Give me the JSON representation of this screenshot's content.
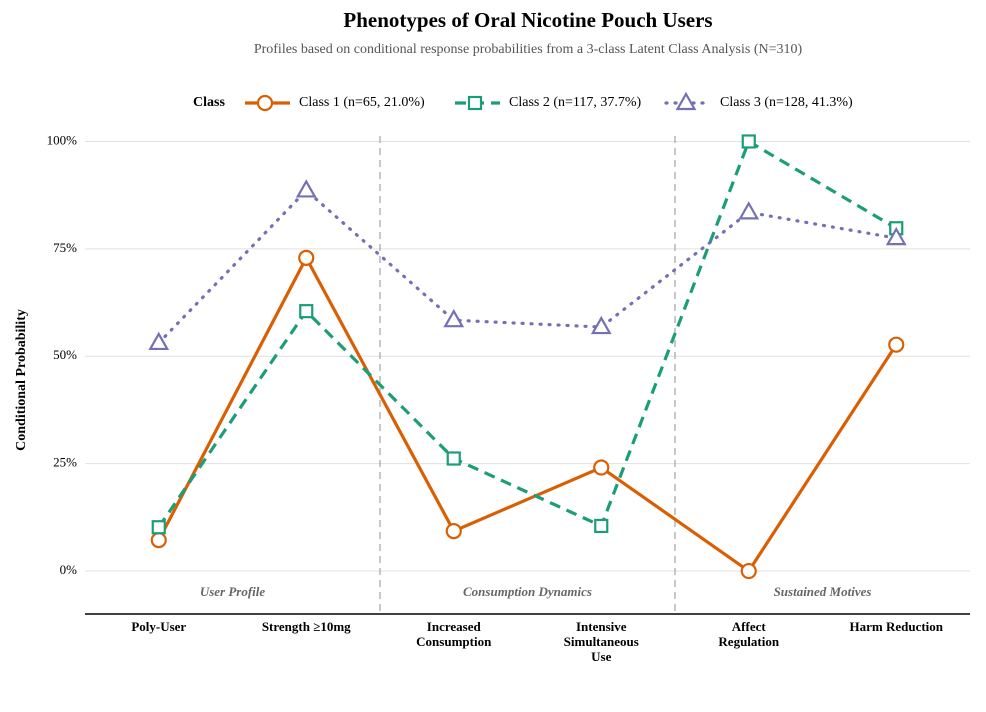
{
  "chart_data": {
    "type": "line",
    "title": "Phenotypes of Oral Nicotine Pouch Users",
    "subtitle": "Profiles based on conditional response probabilities from a 3-class Latent Class Analysis (N=310)",
    "y_label": "Conditional Probability",
    "legend_title": "Class",
    "legend_position": "top",
    "grid": true,
    "categories": [
      "Poly-User",
      "Strength ≥10mg",
      "Increased\nConsumption",
      "Intensive\nSimultaneous\nUse",
      "Affect\nRegulation",
      "Harm Reduction"
    ],
    "groups": [
      "User Profile",
      "Consumption Dynamics",
      "Sustained Motives"
    ],
    "ylim": [
      -10,
      105
    ],
    "yticks": [
      {
        "value": 0,
        "label": "0%"
      },
      {
        "value": 25,
        "label": "25%"
      },
      {
        "value": 50,
        "label": "50%"
      },
      {
        "value": 75,
        "label": "75%"
      },
      {
        "value": 100,
        "label": "100%"
      }
    ],
    "series": [
      {
        "name": "Class 1 (n=65, 21.0%)",
        "color": "#d95f02",
        "marker": "circle",
        "dash": "solid",
        "values": [
          7.2,
          72.9,
          9.3,
          24.1,
          0,
          52.7
        ]
      },
      {
        "name": "Class 2 (n=117, 37.7%)",
        "color": "#1b9e77",
        "marker": "square",
        "dash": "dashed",
        "values": [
          10.2,
          60.5,
          26.2,
          10.5,
          100,
          79.8
        ]
      },
      {
        "name": "Class 3 (n=128, 41.3%)",
        "color": "#7570b3",
        "marker": "triangle",
        "dash": "dotted",
        "values": [
          53.1,
          88.6,
          58.4,
          56.8,
          83.5,
          77.5
        ]
      }
    ]
  }
}
